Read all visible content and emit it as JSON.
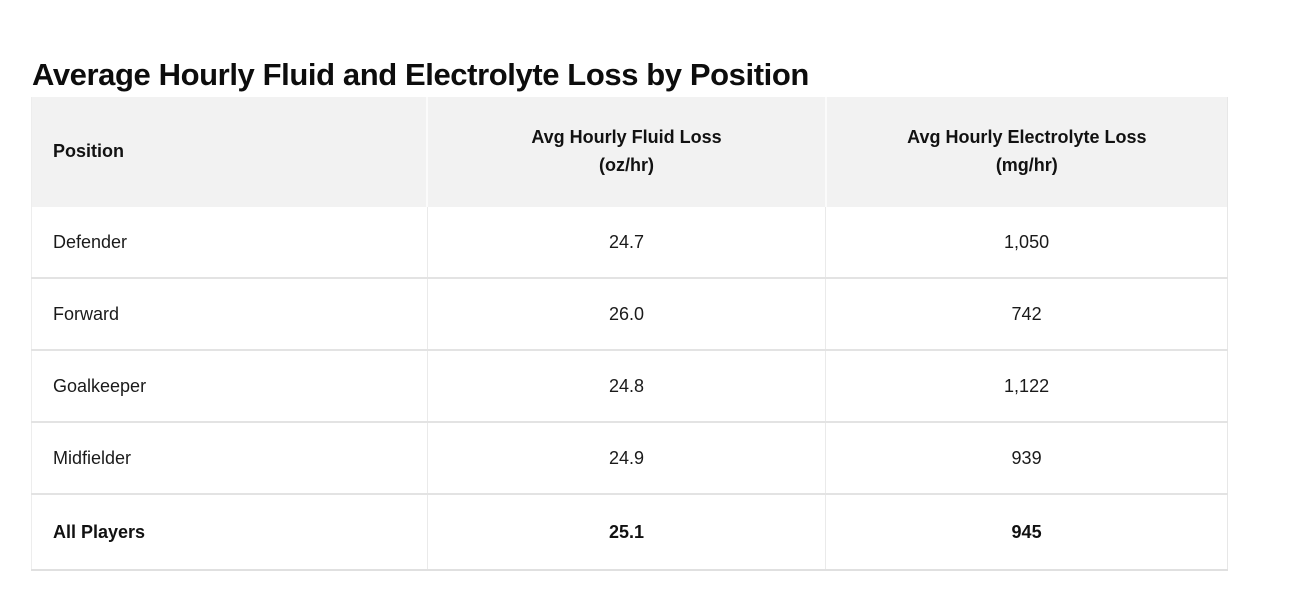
{
  "title": "Average Hourly Fluid and Electrolyte Loss by Position",
  "colors": {
    "header_bg": "#f2f2f2",
    "grid_line": "#e3e3e3",
    "text": "#161616",
    "background": "#ffffff"
  },
  "table": {
    "columns": [
      {
        "label": "Position",
        "align": "left"
      },
      {
        "label": "Avg Hourly Fluid Loss\n(oz/hr)",
        "align": "center"
      },
      {
        "label": "Avg Hourly Electrolyte Loss\n(mg/hr)",
        "align": "center"
      }
    ],
    "rows": [
      {
        "position": "Defender",
        "fluid": "24.7",
        "electrolyte": "1,050"
      },
      {
        "position": "Forward",
        "fluid": "26.0",
        "electrolyte": "742"
      },
      {
        "position": "Goalkeeper",
        "fluid": "24.8",
        "electrolyte": "1,122"
      },
      {
        "position": "Midfielder",
        "fluid": "24.9",
        "electrolyte": "939"
      },
      {
        "position": "All Players",
        "fluid": "25.1",
        "electrolyte": "945"
      }
    ]
  },
  "chart_data": {
    "type": "table",
    "title": "Average Hourly Fluid and Electrolyte Loss by Position",
    "columns": [
      "Position",
      "Avg Hourly Fluid Loss (oz/hr)",
      "Avg Hourly Electrolyte Loss (mg/hr)"
    ],
    "rows": [
      [
        "Defender",
        24.7,
        1050
      ],
      [
        "Forward",
        26.0,
        742
      ],
      [
        "Goalkeeper",
        24.8,
        1122
      ],
      [
        "Midfielder",
        24.9,
        939
      ],
      [
        "All Players",
        25.1,
        945
      ]
    ],
    "notes": "Last row (All Players) is a bold summary row"
  }
}
